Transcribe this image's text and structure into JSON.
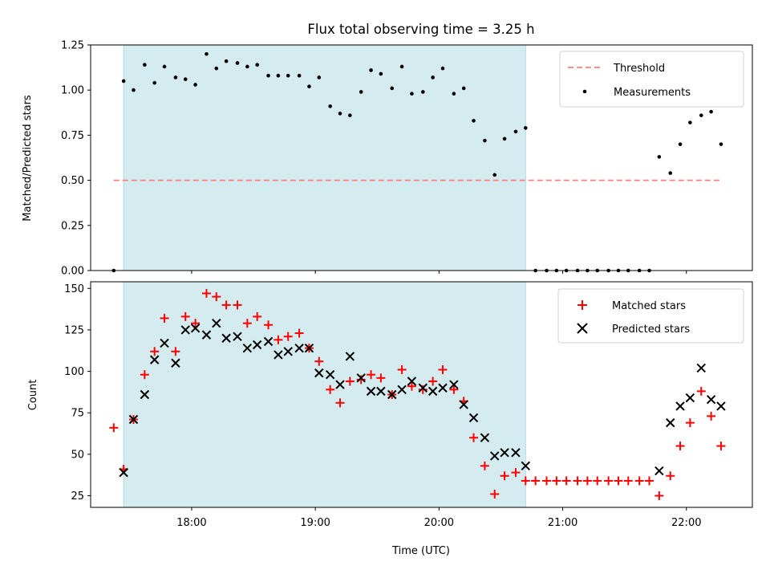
{
  "chart_data": [
    {
      "type": "scatter",
      "title": "Flux total observing time = 3.25 h",
      "xlabel": "",
      "ylabel": "Matched/Predicted stars",
      "xlim": [
        17.1833,
        22.5333
      ],
      "ylim": [
        0,
        1.25
      ],
      "yticks": [
        0,
        0.25,
        0.5,
        0.75,
        1.0,
        1.25
      ],
      "ytick_labels": [
        "0.00",
        "0.25",
        "0.50",
        "0.75",
        "1.00",
        "1.25"
      ],
      "xticks": [
        18,
        19,
        20,
        21,
        22
      ],
      "xtick_labels": [
        "",
        "",
        "",
        "",
        ""
      ],
      "shaded_span": [
        17.45,
        20.7
      ],
      "shaded_color": "#d4ebf0",
      "threshold": {
        "name": "Threshold",
        "value": 0.5,
        "x_range": [
          17.37,
          22.27
        ],
        "color": "#ff7f7f"
      },
      "legend": {
        "position": "top-right",
        "entries": [
          "Threshold",
          "Measurements"
        ]
      },
      "series": [
        {
          "name": "Measurements",
          "color": "#000000",
          "x": [
            17.37,
            17.45,
            17.53,
            17.62,
            17.7,
            17.78,
            17.87,
            17.95,
            18.03,
            18.12,
            18.2,
            18.28,
            18.37,
            18.45,
            18.53,
            18.62,
            18.7,
            18.78,
            18.87,
            18.95,
            19.03,
            19.12,
            19.2,
            19.28,
            19.37,
            19.45,
            19.53,
            19.62,
            19.7,
            19.78,
            19.87,
            19.95,
            20.03,
            20.12,
            20.2,
            20.28,
            20.37,
            20.45,
            20.53,
            20.62,
            20.7,
            20.78,
            20.87,
            20.95,
            21.03,
            21.12,
            21.2,
            21.28,
            21.37,
            21.45,
            21.53,
            21.62,
            21.7,
            21.78,
            21.87,
            21.95,
            22.03,
            22.12,
            22.2,
            22.28
          ],
          "y": [
            0.0,
            1.05,
            1.0,
            1.14,
            1.04,
            1.13,
            1.07,
            1.06,
            1.03,
            1.2,
            1.12,
            1.16,
            1.15,
            1.13,
            1.14,
            1.08,
            1.08,
            1.08,
            1.08,
            1.02,
            1.07,
            0.91,
            0.87,
            0.86,
            0.99,
            1.11,
            1.09,
            1.01,
            1.13,
            0.98,
            0.99,
            1.07,
            1.12,
            0.98,
            1.01,
            0.83,
            0.72,
            0.53,
            0.73,
            0.77,
            0.79,
            0.0,
            0.0,
            0.0,
            0.0,
            0.0,
            0.0,
            0.0,
            0.0,
            0.0,
            0.0,
            0.0,
            0.0,
            0.63,
            0.54,
            0.7,
            0.82,
            0.86,
            0.88,
            0.7
          ]
        }
      ]
    },
    {
      "type": "scatter",
      "title": "",
      "xlabel": "Time (UTC)",
      "ylabel": "Count",
      "xlim": [
        17.1833,
        22.5333
      ],
      "ylim": [
        18,
        154
      ],
      "yticks": [
        25,
        50,
        75,
        100,
        125,
        150
      ],
      "ytick_labels": [
        "25",
        "50",
        "75",
        "100",
        "125",
        "150"
      ],
      "xticks": [
        18,
        19,
        20,
        21,
        22
      ],
      "xtick_labels": [
        "18:00",
        "19:00",
        "20:00",
        "21:00",
        "22:00"
      ],
      "shaded_span": [
        17.45,
        20.7
      ],
      "shaded_color": "#d4ebf0",
      "legend": {
        "position": "top-right",
        "entries": [
          "Matched stars",
          "Predicted stars"
        ]
      },
      "series": [
        {
          "name": "Matched stars",
          "marker": "plus",
          "color": "#ff0000",
          "x": [
            17.37,
            17.45,
            17.53,
            17.62,
            17.7,
            17.78,
            17.87,
            17.95,
            18.03,
            18.12,
            18.2,
            18.28,
            18.37,
            18.45,
            18.53,
            18.62,
            18.7,
            18.78,
            18.87,
            18.95,
            19.03,
            19.12,
            19.2,
            19.28,
            19.37,
            19.45,
            19.53,
            19.62,
            19.7,
            19.78,
            19.87,
            19.95,
            20.03,
            20.12,
            20.2,
            20.28,
            20.37,
            20.45,
            20.53,
            20.62,
            20.7,
            20.78,
            20.87,
            20.95,
            21.03,
            21.12,
            21.2,
            21.28,
            21.37,
            21.45,
            21.53,
            21.62,
            21.7,
            21.78,
            21.87,
            21.95,
            22.03,
            22.12,
            22.2,
            22.28
          ],
          "y": [
            66,
            41,
            71,
            98,
            112,
            132,
            112,
            133,
            129,
            147,
            145,
            140,
            140,
            129,
            133,
            128,
            119,
            121,
            123,
            114,
            106,
            89,
            81,
            94,
            95,
            98,
            96,
            86,
            101,
            91,
            89,
            94,
            101,
            89,
            82,
            60,
            43,
            26,
            37,
            39,
            34,
            34,
            34,
            34,
            34,
            34,
            34,
            34,
            34,
            34,
            34,
            34,
            34,
            25,
            37,
            55,
            69,
            88,
            73,
            55
          ]
        },
        {
          "name": "Predicted stars",
          "marker": "x",
          "color": "#000000",
          "x": [
            17.45,
            17.53,
            17.62,
            17.7,
            17.78,
            17.87,
            17.95,
            18.03,
            18.12,
            18.2,
            18.28,
            18.37,
            18.45,
            18.53,
            18.62,
            18.7,
            18.78,
            18.87,
            18.95,
            19.03,
            19.12,
            19.2,
            19.28,
            19.37,
            19.45,
            19.53,
            19.62,
            19.7,
            19.78,
            19.87,
            19.95,
            20.03,
            20.12,
            20.2,
            20.28,
            20.37,
            20.45,
            20.53,
            20.62,
            20.7,
            21.78,
            21.87,
            21.95,
            22.03,
            22.12,
            22.2,
            22.28
          ],
          "y": [
            39,
            71,
            86,
            107,
            117,
            105,
            125,
            126,
            122,
            129,
            120,
            121,
            114,
            116,
            118,
            110,
            112,
            114,
            114,
            99,
            98,
            92,
            109,
            96,
            88,
            88,
            86,
            89,
            94,
            90,
            88,
            90,
            92,
            80,
            72,
            60,
            49,
            51,
            51,
            43,
            40,
            69,
            79,
            84,
            102,
            83,
            79
          ]
        }
      ]
    }
  ]
}
